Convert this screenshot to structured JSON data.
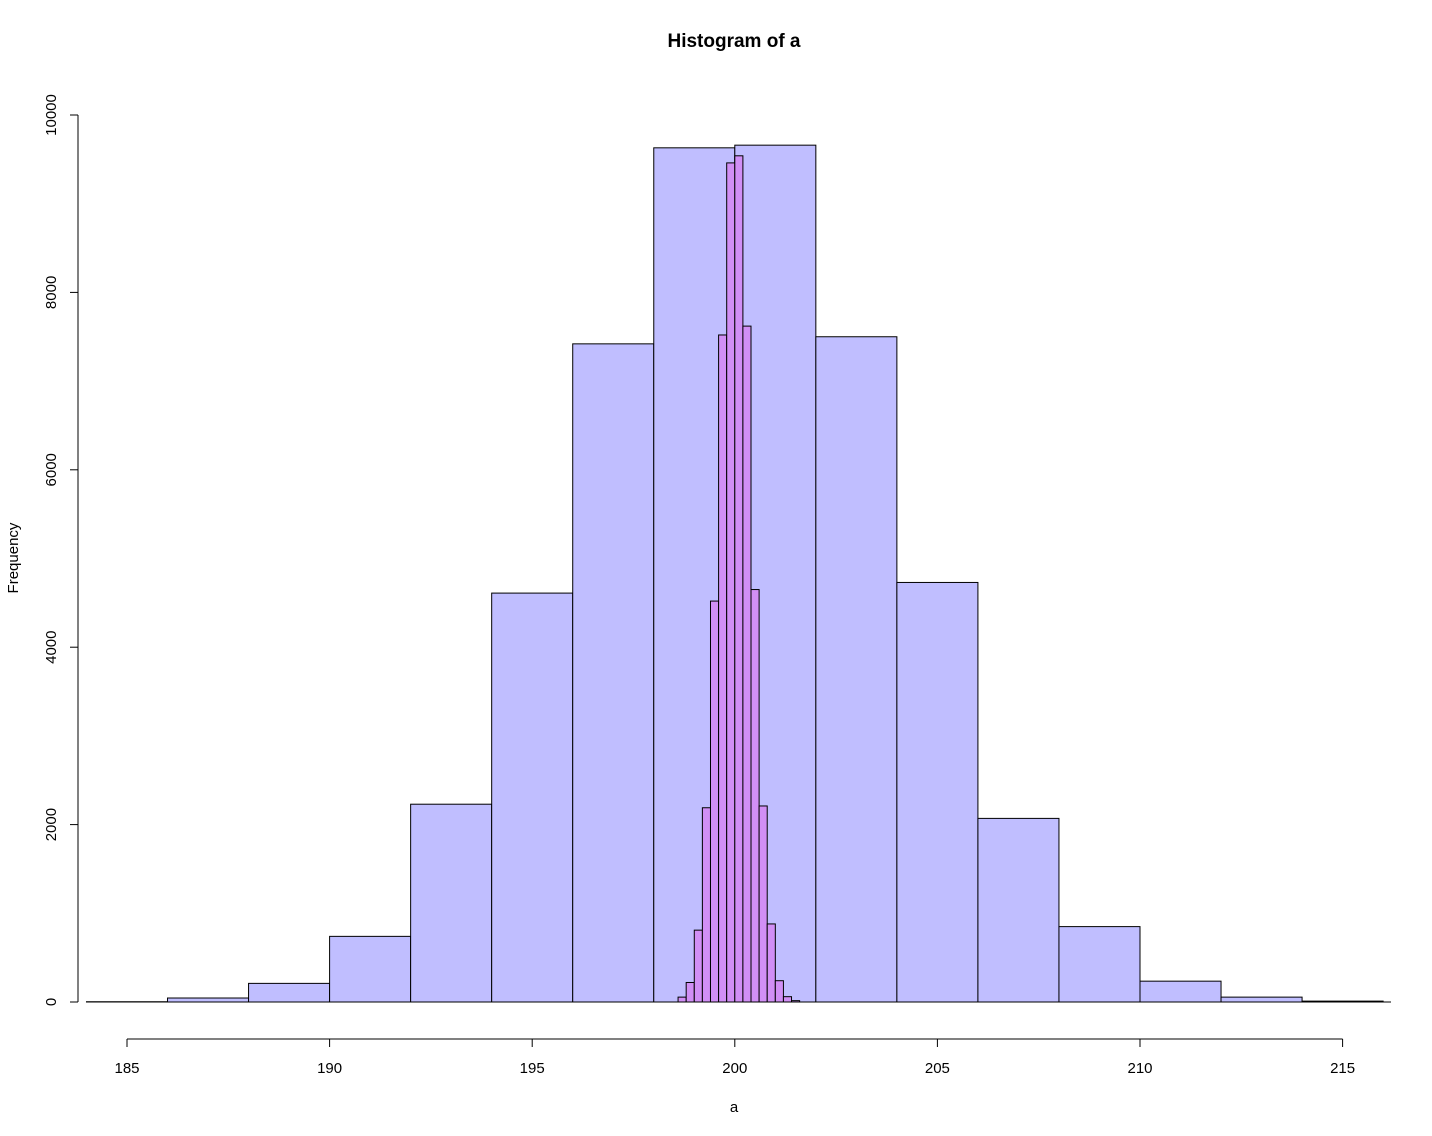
{
  "chart_data": {
    "type": "bar",
    "title": "Histogram of a",
    "xlabel": "a",
    "ylabel": "Frequency",
    "xlim": [
      185,
      216
    ],
    "ylim": [
      0,
      10000
    ],
    "x_ticks": [
      185,
      190,
      195,
      200,
      205,
      210,
      215
    ],
    "y_ticks": [
      0,
      2000,
      4000,
      6000,
      8000,
      10000
    ],
    "x_tick_labels": [
      "185",
      "190",
      "195",
      "200",
      "205",
      "210",
      "215"
    ],
    "y_tick_labels": [
      "0",
      "2000",
      "4000",
      "6000",
      "8000",
      "10000"
    ],
    "grid": false,
    "legend": "none",
    "series": [
      {
        "color": "#c0beff",
        "bin_width": 2,
        "breaks": [
          184,
          186,
          188,
          190,
          192,
          194,
          196,
          198,
          200,
          202,
          204,
          206,
          208,
          210,
          212,
          214,
          216
        ],
        "values": [
          3,
          45,
          210,
          740,
          2230,
          4610,
          7420,
          9630,
          9660,
          7500,
          4730,
          2070,
          850,
          235,
          55,
          10
        ]
      },
      {
        "color": "#d18ff5",
        "bin_width": 0.2,
        "breaks": [
          198.6,
          198.8,
          199.0,
          199.2,
          199.4,
          199.6,
          199.8,
          200.0,
          200.2,
          200.4,
          200.6,
          200.8,
          201.0,
          201.2,
          201.4,
          201.6
        ],
        "values": [
          55,
          220,
          810,
          2190,
          4520,
          7520,
          9460,
          9540,
          7620,
          4650,
          2210,
          880,
          240,
          60,
          15
        ]
      }
    ]
  }
}
